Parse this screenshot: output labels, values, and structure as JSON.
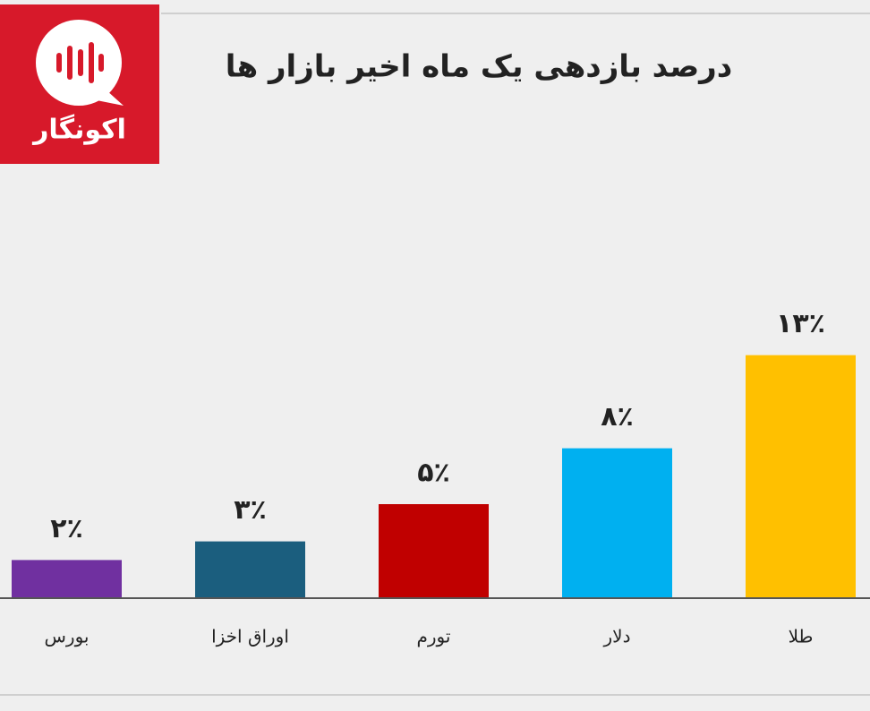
{
  "logo": "اکونگار",
  "chart_data": {
    "type": "bar",
    "title": "درصد بازدهی یک ماه اخیر بازار ها",
    "categories": [
      "بورس",
      "اوراق اخزا",
      "تورم",
      "دلار",
      "طلا"
    ],
    "values": [
      2,
      3,
      5,
      8,
      13
    ],
    "value_labels": [
      "۲٪",
      "۳٪",
      "۵٪",
      "۸٪",
      "۱۳٪"
    ],
    "colors": [
      "#7030a0",
      "#1b5e7e",
      "#c00000",
      "#00b0f0",
      "#ffc000"
    ]
  }
}
